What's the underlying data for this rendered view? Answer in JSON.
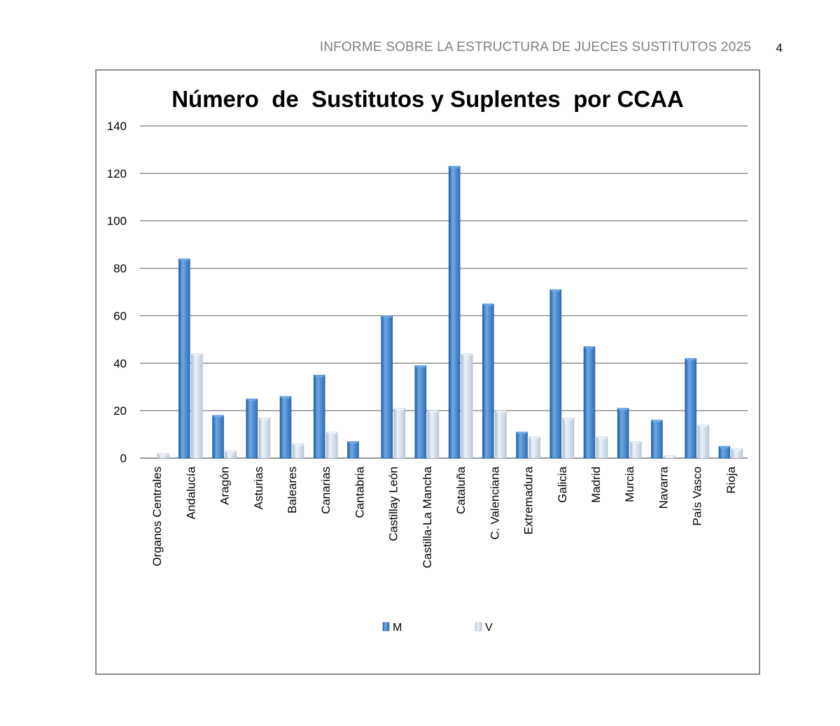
{
  "header": {
    "title": "INFORME SOBRE LA ESTRUCTURA DE JUECES SUSTITUTOS 2025",
    "page_number": "4"
  },
  "colors": {
    "series_m": "#3d7fc7",
    "series_m_light": "#6fa9e6",
    "series_m_dark": "#1f5ea3",
    "series_v": "#cfdbe9",
    "series_v_light": "#eef3f9",
    "series_v_dark": "#a9bcd2",
    "gridline": "#7a7a7a",
    "frame": "#8c8c8c"
  },
  "chart_data": {
    "type": "bar",
    "title": "Número  de  Sustitutos y Suplentes  por CCAA",
    "xlabel": "",
    "ylabel": "",
    "ylim": [
      0,
      140
    ],
    "yticks": [
      0,
      20,
      40,
      60,
      80,
      100,
      120,
      140
    ],
    "grid": true,
    "legend_position": "bottom",
    "categories": [
      "Organos Centrales",
      "Andalucía",
      "Aragón",
      "Asturias",
      "Baleares",
      "Canarias",
      "Cantabria",
      "Castillay León",
      "Castilla-La Mancha",
      "Cataluña",
      "C. Valenciana",
      "Extremadura",
      "Galicia",
      "Madrid",
      "Murcia",
      "Navarra",
      "País Vasco",
      "Rioja"
    ],
    "series": [
      {
        "name": "M",
        "values": [
          0,
          84,
          18,
          25,
          26,
          35,
          7,
          60,
          39,
          123,
          65,
          11,
          71,
          47,
          21,
          16,
          42,
          5
        ]
      },
      {
        "name": "V",
        "values": [
          2,
          44,
          3,
          17,
          6,
          11,
          0,
          21,
          20,
          44,
          20,
          9,
          17,
          9,
          7,
          1,
          14,
          4
        ]
      }
    ]
  }
}
